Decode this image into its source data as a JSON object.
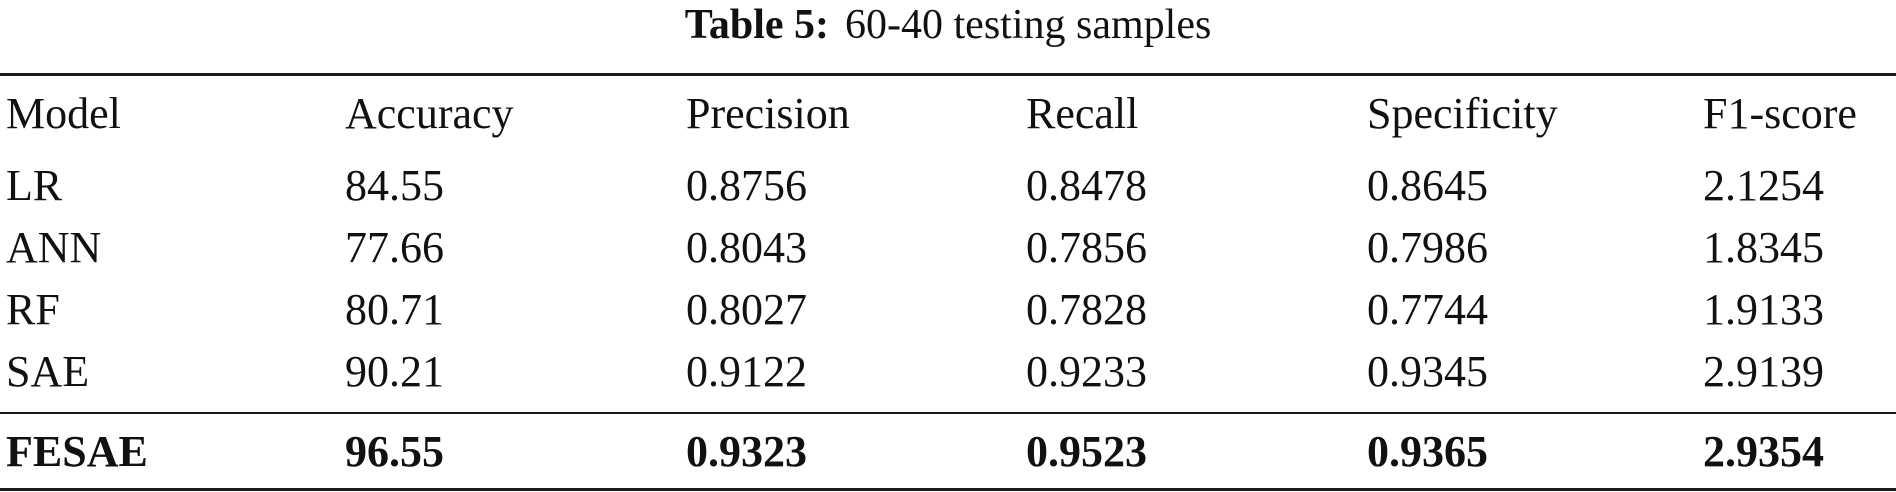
{
  "caption": {
    "label": "Table 5:",
    "text": "60-40 testing samples"
  },
  "table": {
    "headers": [
      "Model",
      "Accuracy",
      "Precision",
      "Recall",
      "Specificity",
      "F1-score"
    ],
    "rows": [
      [
        "LR",
        "84.55",
        "0.8756",
        "0.8478",
        "0.8645",
        "2.1254"
      ],
      [
        "ANN",
        "77.66",
        "0.8043",
        "0.7856",
        "0.7986",
        "1.8345"
      ],
      [
        "RF",
        "80.71",
        "0.8027",
        "0.7828",
        "0.7744",
        "1.9133"
      ],
      [
        "SAE",
        "90.21",
        "0.9122",
        "0.9233",
        "0.9345",
        "2.9139"
      ]
    ],
    "best_row": [
      "FESAE",
      "96.55",
      "0.9323",
      "0.9523",
      "0.9365",
      "2.9354"
    ]
  }
}
